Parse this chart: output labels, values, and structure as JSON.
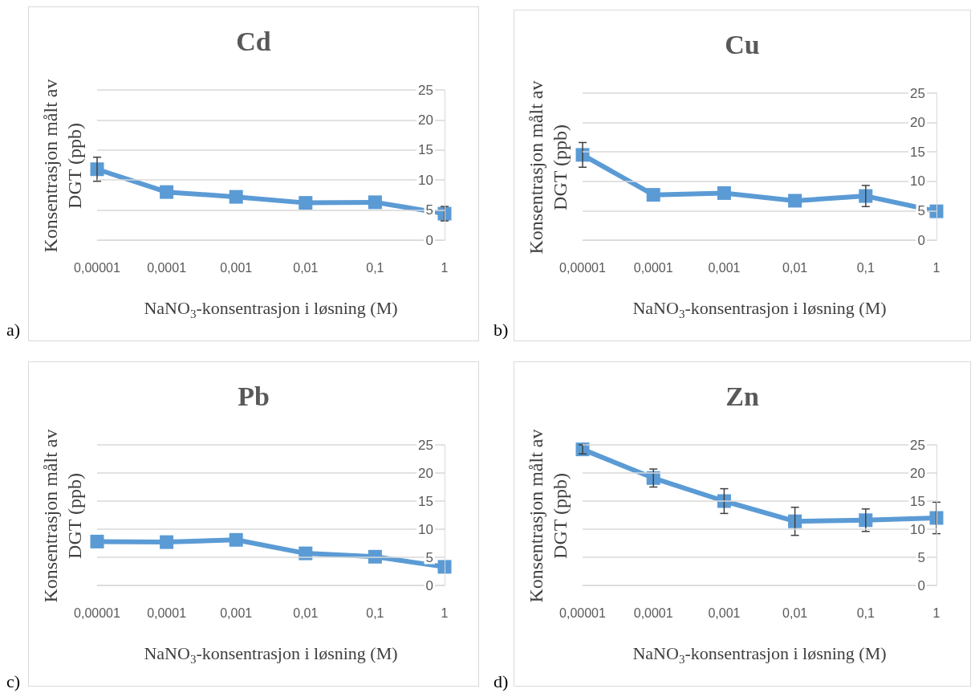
{
  "chart_data": [
    {
      "type": "line",
      "title": "Cd",
      "xlabel": "NaNO$_{3}$-konsentrasjon i løsning (M)",
      "ylabel": "Konsentrasjon målt av\nDGT (ppb)",
      "categories": [
        "0,00001",
        "0,0001",
        "0,001",
        "0,01",
        "0,1",
        "1"
      ],
      "series": [
        {
          "color": "#5b9bd5",
          "values": [
            11.8,
            8.0,
            7.2,
            6.2,
            6.3,
            4.4
          ],
          "errors": [
            2.0,
            null,
            null,
            null,
            null,
            1.2
          ]
        }
      ],
      "ylim": [
        0,
        25
      ],
      "yticks": [
        0,
        5,
        10,
        15,
        20,
        25
      ],
      "grid": "y",
      "marker": "square",
      "line_style": "solid",
      "annotations": [
        "a)"
      ]
    },
    {
      "type": "line",
      "title": "Cu",
      "xlabel": "NaNO$_{3}$-konsentrasjon i løsning (M)",
      "ylabel": "Konsentrasjon målt av\nDGT (ppb)",
      "categories": [
        "0,00001",
        "0,0001",
        "0,001",
        "0,01",
        "0,1",
        "1"
      ],
      "series": [
        {
          "color": "#5b9bd5",
          "values": [
            14.5,
            7.7,
            8.0,
            6.7,
            7.5,
            4.9
          ],
          "errors": [
            2.1,
            null,
            null,
            null,
            1.8,
            null
          ]
        }
      ],
      "ylim": [
        0,
        25
      ],
      "yticks": [
        0,
        5,
        10,
        15,
        20,
        25
      ],
      "grid": "y",
      "marker": "square",
      "line_style": "solid",
      "annotations": [
        "b)"
      ]
    },
    {
      "type": "line",
      "title": "Pb",
      "xlabel": "NaNO$_{3}$-konsentrasjon i løsning (M)",
      "ylabel": "Konsentrasjon målt av\nDGT (ppb)",
      "categories": [
        "0,00001",
        "0,0001",
        "0,001",
        "0,01",
        "0,1",
        "1"
      ],
      "series": [
        {
          "color": "#5b9bd5",
          "values": [
            7.8,
            7.7,
            8.1,
            5.7,
            5.1,
            3.3
          ]
        }
      ],
      "ylim": [
        0,
        25
      ],
      "yticks": [
        0,
        5,
        10,
        15,
        20,
        25
      ],
      "grid": "y",
      "marker": "square",
      "line_style": "solid",
      "annotations": [
        "c)"
      ]
    },
    {
      "type": "line",
      "title": "Zn",
      "xlabel": "NaNO$_{3}$-konsentrasjon i løsning (M)",
      "ylabel": "Konsentrasjon målt av\nDGT (ppb)",
      "categories": [
        "0,00001",
        "0,0001",
        "0,001",
        "0,01",
        "0,1",
        "1"
      ],
      "series": [
        {
          "color": "#5b9bd5",
          "values": [
            24.2,
            19.1,
            15.0,
            11.4,
            11.6,
            12.0
          ],
          "errors": [
            0.8,
            1.6,
            2.2,
            2.5,
            2.0,
            2.8
          ]
        }
      ],
      "ylim": [
        0,
        25
      ],
      "yticks": [
        0,
        5,
        10,
        15,
        20,
        25
      ],
      "grid": "y",
      "marker": "square",
      "line_style": "solid",
      "annotations": [
        "d)"
      ]
    }
  ]
}
